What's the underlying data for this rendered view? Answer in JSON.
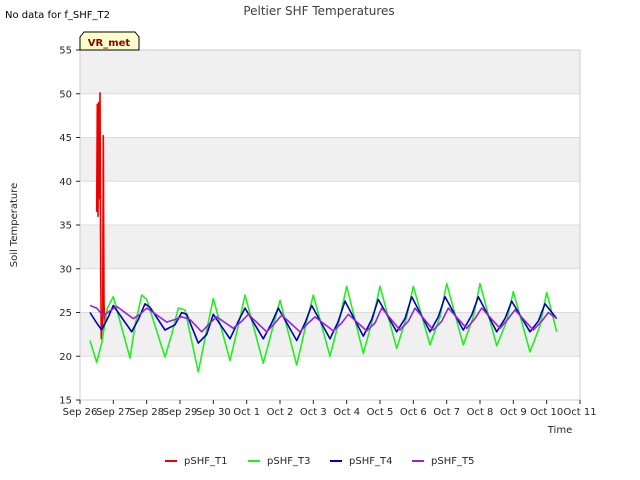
{
  "no_data_note": "No data for f_SHF_T2",
  "colors": {
    "pSHF_T1": "#ee0000",
    "pSHF_T3": "#22ee22",
    "pSHF_T4": "#0000bb",
    "pSHF_T5": "#9922dd",
    "band": "#f0f0f0",
    "badge_bg": "#ffffcc",
    "badge_border": "#000000"
  },
  "chart_data": {
    "type": "line",
    "title": "Peltier SHF Temperatures",
    "xlabel": "Time",
    "ylabel": "Soil Temperature",
    "badge": "VR_met",
    "xlim": [
      0,
      15
    ],
    "ylim": [
      15,
      55
    ],
    "yticks": [
      15,
      20,
      25,
      30,
      35,
      40,
      45,
      50,
      55
    ],
    "xticks": [
      {
        "value": 0,
        "label": "Sep 26"
      },
      {
        "value": 1,
        "label": "Sep 27"
      },
      {
        "value": 2,
        "label": "Sep 28"
      },
      {
        "value": 3,
        "label": "Sep 29"
      },
      {
        "value": 4,
        "label": "Sep 30"
      },
      {
        "value": 5,
        "label": "Oct 1"
      },
      {
        "value": 6,
        "label": "Oct 2"
      },
      {
        "value": 7,
        "label": "Oct 3"
      },
      {
        "value": 8,
        "label": "Oct 4"
      },
      {
        "value": 9,
        "label": "Oct 5"
      },
      {
        "value": 10,
        "label": "Oct 6"
      },
      {
        "value": 11,
        "label": "Oct 7"
      },
      {
        "value": 12,
        "label": "Oct 8"
      },
      {
        "value": 13,
        "label": "Oct 9"
      },
      {
        "value": 14,
        "label": "Oct 10"
      },
      {
        "value": 15,
        "label": "Oct 11"
      }
    ],
    "legend_position": "bottom-center",
    "series": [
      {
        "name": "pSHF_T1",
        "x": [
          0.5,
          0.52,
          0.54,
          0.56,
          0.58,
          0.6,
          0.62,
          0.64,
          0.66,
          0.68,
          0.7,
          0.72,
          0.74,
          0.76,
          0.78
        ],
        "y": [
          36.5,
          48.8,
          36.0,
          49.0,
          38.0,
          50.1,
          30.0,
          22.0,
          24.5,
          23.5,
          45.2,
          26.0,
          24.0,
          24.8,
          24.3
        ]
      },
      {
        "name": "pSHF_T3",
        "x": [
          0.3,
          0.5,
          0.65,
          0.82,
          1.0,
          1.5,
          1.65,
          1.85,
          2.0,
          2.55,
          2.75,
          2.95,
          3.15,
          3.55,
          3.8,
          4.0,
          4.5,
          4.75,
          4.95,
          5.5,
          5.8,
          6.0,
          6.5,
          6.8,
          7.0,
          7.5,
          7.8,
          8.0,
          8.5,
          8.8,
          9.0,
          9.5,
          9.8,
          10.0,
          10.5,
          10.8,
          11.0,
          11.5,
          11.8,
          12.0,
          12.5,
          12.8,
          13.0,
          13.5,
          13.8,
          14.0,
          14.3
        ],
        "y": [
          21.8,
          19.3,
          21.5,
          25.5,
          26.8,
          19.8,
          23.5,
          27.0,
          26.5,
          19.9,
          22.5,
          25.5,
          25.3,
          18.2,
          23.0,
          26.6,
          19.5,
          23.5,
          27.0,
          19.2,
          23.5,
          26.4,
          19.0,
          24.0,
          27.0,
          20.0,
          24.5,
          28.0,
          20.3,
          24.5,
          28.0,
          20.9,
          24.5,
          28.0,
          21.3,
          24.5,
          28.3,
          21.3,
          24.5,
          28.3,
          21.2,
          24.0,
          27.4,
          20.5,
          23.5,
          27.3,
          22.8
        ]
      },
      {
        "name": "pSHF_T4",
        "x": [
          0.3,
          0.5,
          0.65,
          0.85,
          1.0,
          1.55,
          1.75,
          1.95,
          2.1,
          2.55,
          2.85,
          3.05,
          3.2,
          3.55,
          3.8,
          4.0,
          4.5,
          4.75,
          4.95,
          5.5,
          5.75,
          5.95,
          6.5,
          6.75,
          6.95,
          7.5,
          7.75,
          7.95,
          8.5,
          8.75,
          8.95,
          9.5,
          9.75,
          9.95,
          10.5,
          10.75,
          10.95,
          11.5,
          11.75,
          11.95,
          12.5,
          12.75,
          12.95,
          13.5,
          13.75,
          13.95,
          14.3
        ],
        "y": [
          25.0,
          23.8,
          23.0,
          24.5,
          25.8,
          22.8,
          24.2,
          26.0,
          25.6,
          23.0,
          23.6,
          25.0,
          24.8,
          21.5,
          22.5,
          24.8,
          22.0,
          24.0,
          25.5,
          22.0,
          23.8,
          25.5,
          21.8,
          23.8,
          25.8,
          22.0,
          24.0,
          26.3,
          22.3,
          24.2,
          26.5,
          22.8,
          24.3,
          26.8,
          22.8,
          24.5,
          26.8,
          23.0,
          24.7,
          26.8,
          22.8,
          24.3,
          26.3,
          22.8,
          24.0,
          26.0,
          24.3
        ]
      },
      {
        "name": "pSHF_T5",
        "x": [
          0.3,
          0.5,
          0.7,
          0.9,
          1.1,
          1.6,
          1.8,
          2.0,
          2.2,
          2.6,
          2.85,
          3.05,
          3.3,
          3.65,
          3.9,
          4.1,
          4.6,
          4.85,
          5.05,
          5.6,
          5.85,
          6.05,
          6.6,
          6.85,
          7.05,
          7.6,
          7.85,
          8.05,
          8.6,
          8.85,
          9.05,
          9.6,
          9.85,
          10.05,
          10.6,
          10.85,
          11.05,
          11.6,
          11.85,
          12.05,
          12.6,
          12.85,
          13.05,
          13.6,
          13.85,
          14.05,
          14.3
        ],
        "y": [
          25.8,
          25.5,
          24.6,
          25.2,
          25.7,
          24.3,
          24.8,
          25.5,
          25.0,
          23.9,
          24.2,
          24.5,
          24.2,
          22.8,
          23.8,
          24.5,
          23.2,
          24.0,
          24.8,
          22.8,
          23.8,
          24.7,
          22.8,
          23.8,
          24.5,
          22.9,
          23.8,
          24.8,
          22.9,
          23.8,
          25.5,
          23.0,
          24.0,
          25.5,
          23.0,
          24.0,
          25.5,
          23.2,
          24.3,
          25.5,
          23.2,
          24.3,
          25.3,
          23.0,
          24.0,
          25.0,
          24.3
        ]
      }
    ]
  }
}
